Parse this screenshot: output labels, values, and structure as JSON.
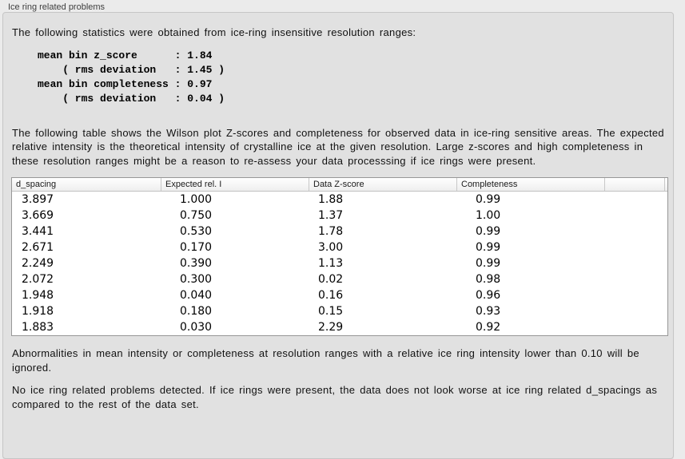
{
  "panel": {
    "title": "Ice ring related problems"
  },
  "stats": {
    "intro": "The following statistics were obtained from ice-ring insensitive resolution ranges:",
    "lines": [
      "mean bin z_score      : 1.84",
      "    ( rms deviation   : 1.45 )",
      "mean bin completeness : 0.97",
      "    ( rms deviation   : 0.04 )"
    ]
  },
  "table_intro": "The following table shows the Wilson plot Z-scores and completeness for observed data in ice-ring sensitive areas. The expected relative intensity is the theoretical intensity of crystalline ice at the given resolution. Large z-scores and high completeness in these resolution ranges might be a reason to re-assess your data processsing if ice rings were present.",
  "table": {
    "columns": [
      "d_spacing",
      "Expected rel. I",
      "Data Z-score",
      "Completeness",
      ""
    ],
    "rows": [
      [
        "3.897",
        "1.000",
        "1.88",
        "0.99"
      ],
      [
        "3.669",
        "0.750",
        "1.37",
        "1.00"
      ],
      [
        "3.441",
        "0.530",
        "1.78",
        "0.99"
      ],
      [
        "2.671",
        "0.170",
        "3.00",
        "0.99"
      ],
      [
        "2.249",
        "0.390",
        "1.13",
        "0.99"
      ],
      [
        "2.072",
        "0.300",
        "0.02",
        "0.98"
      ],
      [
        "1.948",
        "0.040",
        "0.16",
        "0.96"
      ],
      [
        "1.918",
        "0.180",
        "0.15",
        "0.93"
      ],
      [
        "1.883",
        "0.030",
        "2.29",
        "0.92"
      ]
    ]
  },
  "notes": [
    "Abnormalities in mean intensity or completeness at resolution ranges with a relative ice ring intensity lower than 0.10 will be ignored.",
    "No ice ring related problems detected. If ice rings were present, the data does not look worse at ice ring related d_spacings as compared to the rest of the data set."
  ],
  "colors": {
    "window_bg": "#ebebeb",
    "box_bg": "#e1e1e1",
    "box_border": "#c6c6c6",
    "table_border": "#979797",
    "header_separator": "#c8c8c8",
    "text": "#111111"
  }
}
